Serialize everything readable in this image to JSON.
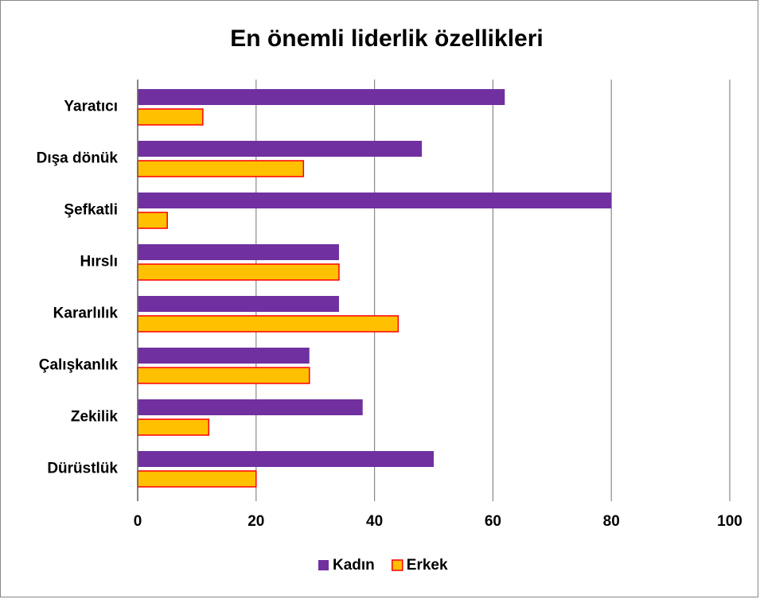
{
  "chart_data": {
    "type": "barh",
    "title": "En önemli liderlik özellikleri",
    "categories": [
      "Yaratıcı",
      "Dışa dönük",
      "Şefkatli",
      "Hırslı",
      "Kararlılık",
      "Çalışkanlık",
      "Zekilik",
      "Dürüstlük"
    ],
    "series": [
      {
        "name": "Kadın",
        "color": "#7030a0",
        "values": [
          62,
          48,
          80,
          34,
          34,
          29,
          38,
          50
        ]
      },
      {
        "name": "Erkek",
        "color": "#ffc000",
        "values": [
          11,
          28,
          5,
          34,
          44,
          29,
          12,
          20
        ]
      }
    ],
    "xlim": [
      0,
      100
    ],
    "xticks": [
      0,
      20,
      40,
      60,
      80,
      100
    ],
    "grid": true,
    "legend": "bottom"
  }
}
